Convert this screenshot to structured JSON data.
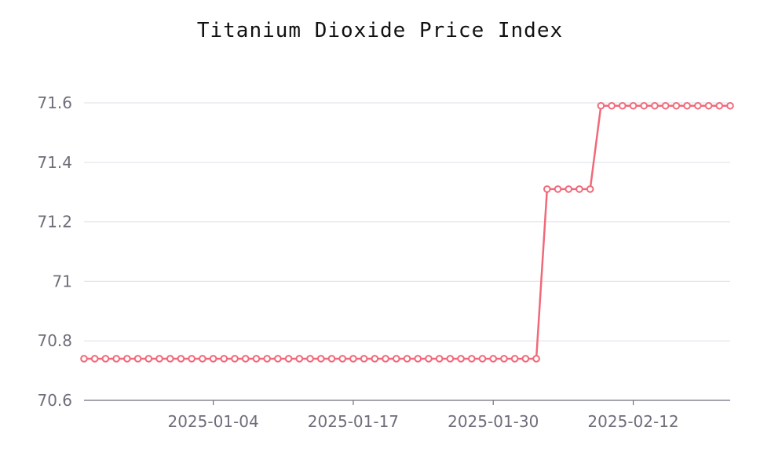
{
  "chart_data": {
    "type": "line",
    "title": "Titanium Dioxide Price Index",
    "xlabel": "",
    "ylabel": "",
    "ylim": [
      70.6,
      71.6
    ],
    "y_ticks": [
      "70.6",
      "70.8",
      "71",
      "71.2",
      "71.4",
      "71.6"
    ],
    "x_ticks": [
      "2025-01-04",
      "2025-01-17",
      "2025-01-30",
      "2025-02-12"
    ],
    "x_start": "2024-12-23",
    "x_end": "2025-02-21",
    "grid": true,
    "legend": "none",
    "series": [
      {
        "color": "#f0697a",
        "points": [
          [
            "2024-12-23",
            70.74
          ],
          [
            "2024-12-24",
            70.74
          ],
          [
            "2024-12-25",
            70.74
          ],
          [
            "2024-12-26",
            70.74
          ],
          [
            "2024-12-27",
            70.74
          ],
          [
            "2024-12-28",
            70.74
          ],
          [
            "2024-12-29",
            70.74
          ],
          [
            "2024-12-30",
            70.74
          ],
          [
            "2024-12-31",
            70.74
          ],
          [
            "2025-01-01",
            70.74
          ],
          [
            "2025-01-02",
            70.74
          ],
          [
            "2025-01-03",
            70.74
          ],
          [
            "2025-01-04",
            70.74
          ],
          [
            "2025-01-05",
            70.74
          ],
          [
            "2025-01-06",
            70.74
          ],
          [
            "2025-01-07",
            70.74
          ],
          [
            "2025-01-08",
            70.74
          ],
          [
            "2025-01-09",
            70.74
          ],
          [
            "2025-01-10",
            70.74
          ],
          [
            "2025-01-11",
            70.74
          ],
          [
            "2025-01-12",
            70.74
          ],
          [
            "2025-01-13",
            70.74
          ],
          [
            "2025-01-14",
            70.74
          ],
          [
            "2025-01-15",
            70.74
          ],
          [
            "2025-01-16",
            70.74
          ],
          [
            "2025-01-17",
            70.74
          ],
          [
            "2025-01-18",
            70.74
          ],
          [
            "2025-01-19",
            70.74
          ],
          [
            "2025-01-20",
            70.74
          ],
          [
            "2025-01-21",
            70.74
          ],
          [
            "2025-01-22",
            70.74
          ],
          [
            "2025-01-23",
            70.74
          ],
          [
            "2025-01-24",
            70.74
          ],
          [
            "2025-01-25",
            70.74
          ],
          [
            "2025-01-26",
            70.74
          ],
          [
            "2025-01-27",
            70.74
          ],
          [
            "2025-01-28",
            70.74
          ],
          [
            "2025-01-29",
            70.74
          ],
          [
            "2025-01-30",
            70.74
          ],
          [
            "2025-01-31",
            70.74
          ],
          [
            "2025-02-01",
            70.74
          ],
          [
            "2025-02-02",
            70.74
          ],
          [
            "2025-02-03",
            70.74
          ],
          [
            "2025-02-04",
            71.31
          ],
          [
            "2025-02-05",
            71.31
          ],
          [
            "2025-02-06",
            71.31
          ],
          [
            "2025-02-07",
            71.31
          ],
          [
            "2025-02-08",
            71.31
          ],
          [
            "2025-02-09",
            71.59
          ],
          [
            "2025-02-10",
            71.59
          ],
          [
            "2025-02-11",
            71.59
          ],
          [
            "2025-02-12",
            71.59
          ],
          [
            "2025-02-13",
            71.59
          ],
          [
            "2025-02-14",
            71.59
          ],
          [
            "2025-02-15",
            71.59
          ],
          [
            "2025-02-16",
            71.59
          ],
          [
            "2025-02-17",
            71.59
          ],
          [
            "2025-02-18",
            71.59
          ],
          [
            "2025-02-19",
            71.59
          ],
          [
            "2025-02-20",
            71.59
          ],
          [
            "2025-02-21",
            71.59
          ]
        ]
      }
    ]
  }
}
